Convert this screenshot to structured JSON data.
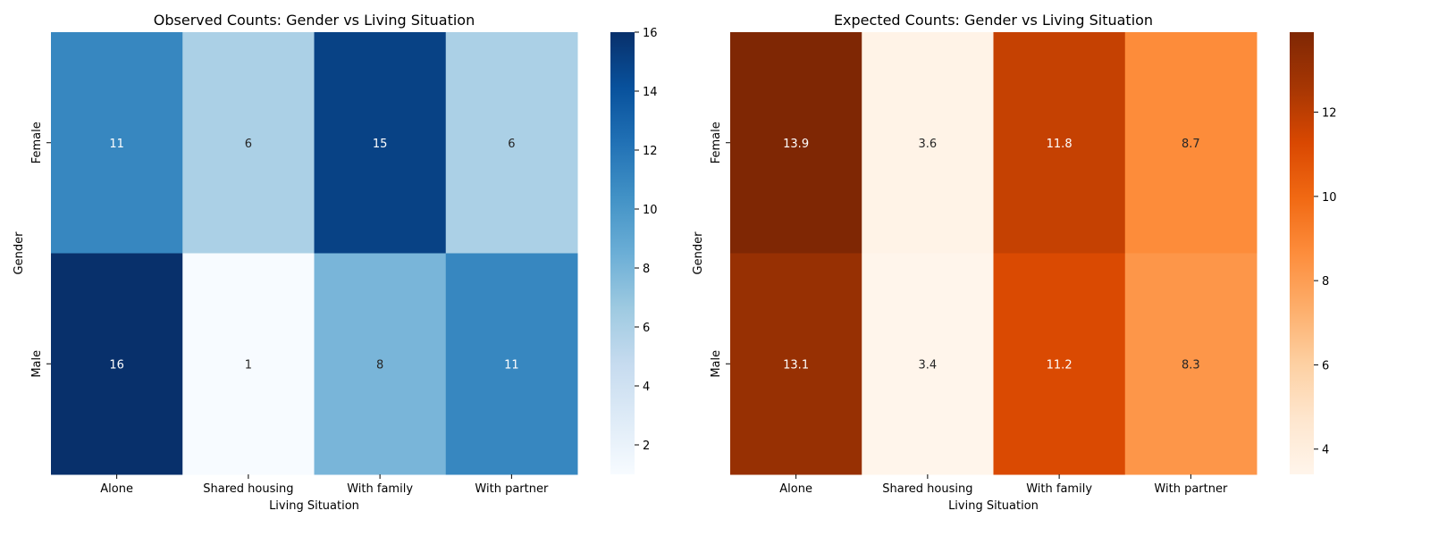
{
  "chart_data": [
    {
      "type": "heatmap",
      "title": "Observed Counts: Gender vs Living Situation",
      "xlabel": "Living Situation",
      "ylabel": "Gender",
      "x_categories": [
        "Alone",
        "Shared housing",
        "With family",
        "With partner"
      ],
      "y_categories": [
        "Female",
        "Male"
      ],
      "values": [
        [
          11,
          6,
          15,
          6
        ],
        [
          16,
          1,
          8,
          11
        ]
      ],
      "value_labels": [
        [
          "11",
          "6",
          "15",
          "6"
        ],
        [
          "16",
          "1",
          "8",
          "11"
        ]
      ],
      "colormap": "Blues",
      "colors": [
        "#f7fbff",
        "#deebf7",
        "#c6dbef",
        "#9ecae1",
        "#6baed6",
        "#4292c6",
        "#2171b5",
        "#08519c",
        "#08306b"
      ],
      "vmin": 1,
      "vmax": 16,
      "colorbar_ticks": [
        2,
        4,
        6,
        8,
        10,
        12,
        14,
        16
      ]
    },
    {
      "type": "heatmap",
      "title": "Expected Counts: Gender vs Living Situation",
      "xlabel": "Living Situation",
      "ylabel": "Gender",
      "x_categories": [
        "Alone",
        "Shared housing",
        "With family",
        "With partner"
      ],
      "y_categories": [
        "Female",
        "Male"
      ],
      "values": [
        [
          13.9,
          3.6,
          11.8,
          8.7
        ],
        [
          13.1,
          3.4,
          11.2,
          8.3
        ]
      ],
      "value_labels": [
        [
          "13.9",
          "3.6",
          "11.8",
          "8.7"
        ],
        [
          "13.1",
          "3.4",
          "11.2",
          "8.3"
        ]
      ],
      "colormap": "Oranges",
      "colors": [
        "#fff5eb",
        "#fee6ce",
        "#fdd0a2",
        "#fdae6b",
        "#fd8d3c",
        "#f16913",
        "#d94801",
        "#a63603",
        "#7f2704"
      ],
      "vmin": 3.4,
      "vmax": 13.9,
      "colorbar_ticks": [
        4,
        6,
        8,
        10,
        12
      ]
    }
  ]
}
